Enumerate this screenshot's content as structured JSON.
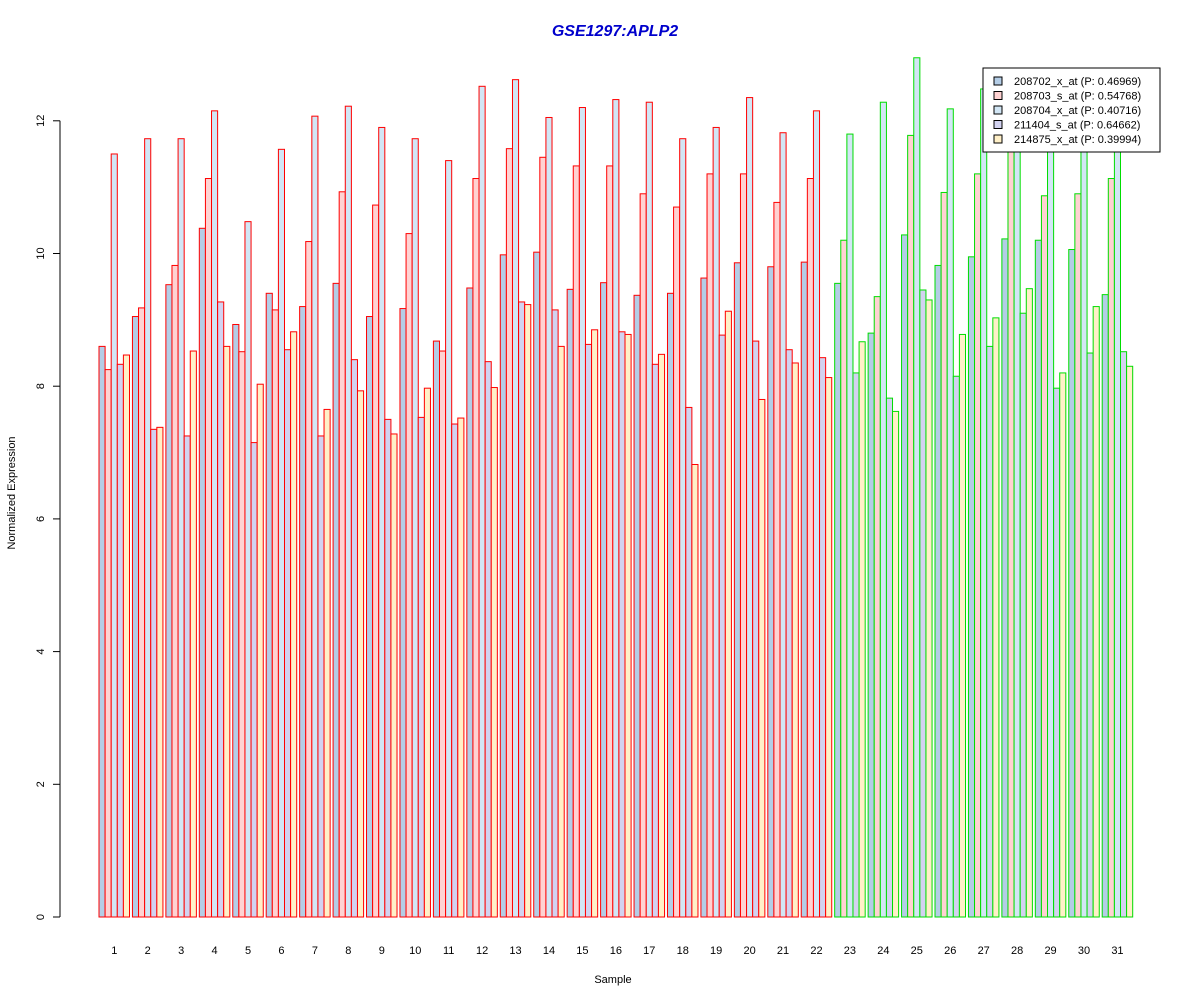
{
  "chart_data": {
    "type": "bar",
    "title": "GSE1297:APLP2",
    "xlabel": "Sample",
    "ylabel": "Normalized Expression",
    "ylim": [
      0,
      13
    ],
    "yticks": [
      "0",
      "2",
      "4",
      "6",
      "8",
      "10",
      "12"
    ],
    "categories": [
      "1",
      "2",
      "3",
      "4",
      "5",
      "6",
      "7",
      "8",
      "9",
      "10",
      "11",
      "12",
      "13",
      "14",
      "15",
      "16",
      "17",
      "18",
      "19",
      "20",
      "21",
      "22",
      "23",
      "24",
      "25",
      "26",
      "27",
      "28",
      "29",
      "30",
      "31"
    ],
    "group_colors": [
      "#ff0000",
      "#ff0000",
      "#ff0000",
      "#ff0000",
      "#ff0000",
      "#ff0000",
      "#ff0000",
      "#ff0000",
      "#ff0000",
      "#ff0000",
      "#ff0000",
      "#ff0000",
      "#ff0000",
      "#ff0000",
      "#ff0000",
      "#ff0000",
      "#ff0000",
      "#ff0000",
      "#ff0000",
      "#ff0000",
      "#ff0000",
      "#ff0000",
      "#00dd00",
      "#00dd00",
      "#00dd00",
      "#00dd00",
      "#00dd00",
      "#00dd00",
      "#00dd00",
      "#00dd00",
      "#00dd00"
    ],
    "series": [
      {
        "name": "208702_x_at (P: 0.46969)",
        "fill": "#b4cde6",
        "values": [
          8.6,
          9.05,
          9.53,
          10.38,
          8.93,
          9.4,
          9.2,
          9.55,
          9.05,
          9.17,
          8.68,
          9.48,
          9.98,
          10.02,
          9.46,
          9.56,
          9.37,
          9.4,
          9.63,
          9.86,
          9.8,
          9.87,
          9.55,
          8.8,
          10.28,
          9.82,
          9.95,
          10.22,
          10.2,
          10.06,
          9.38
        ]
      },
      {
        "name": "208703_s_at (P: 0.54768)",
        "fill": "#ffd2d2",
        "values": [
          8.25,
          9.18,
          9.82,
          11.13,
          8.52,
          9.15,
          10.18,
          10.93,
          10.73,
          10.3,
          8.53,
          11.13,
          11.58,
          11.45,
          11.32,
          11.32,
          10.9,
          10.7,
          11.2,
          11.2,
          10.77,
          11.13,
          10.2,
          9.35,
          11.78,
          10.92,
          11.2,
          11.55,
          10.87,
          10.9,
          11.13
        ]
      },
      {
        "name": "208704_x_at (P: 0.40716)",
        "fill": "#d2e6f5",
        "values": [
          11.5,
          11.73,
          11.73,
          12.15,
          10.48,
          11.57,
          12.07,
          12.22,
          11.9,
          11.73,
          11.4,
          12.52,
          12.62,
          12.05,
          12.2,
          12.32,
          12.28,
          11.73,
          11.9,
          12.35,
          11.82,
          12.15,
          11.8,
          12.28,
          12.95,
          12.18,
          12.48,
          12.08,
          11.73,
          11.6,
          11.85
        ]
      },
      {
        "name": "211404_s_at (P: 0.64662)",
        "fill": "#d2d2f0",
        "values": [
          8.33,
          7.35,
          7.25,
          9.27,
          7.15,
          8.55,
          7.25,
          8.4,
          7.5,
          7.53,
          7.43,
          8.37,
          9.27,
          9.15,
          8.63,
          8.82,
          8.33,
          7.68,
          8.77,
          8.68,
          8.55,
          8.43,
          8.2,
          7.82,
          9.45,
          8.15,
          8.6,
          9.1,
          7.97,
          8.5,
          8.52
        ]
      },
      {
        "name": "214875_x_at (P: 0.39994)",
        "fill": "#fff0c8",
        "values": [
          8.47,
          7.38,
          8.53,
          8.6,
          8.03,
          8.82,
          7.65,
          7.93,
          7.28,
          7.97,
          7.52,
          7.98,
          9.23,
          8.6,
          8.85,
          8.78,
          8.48,
          6.82,
          9.13,
          7.8,
          8.35,
          8.13,
          8.67,
          7.62,
          9.3,
          8.78,
          9.03,
          9.47,
          8.2,
          9.2,
          8.3
        ]
      }
    ]
  }
}
